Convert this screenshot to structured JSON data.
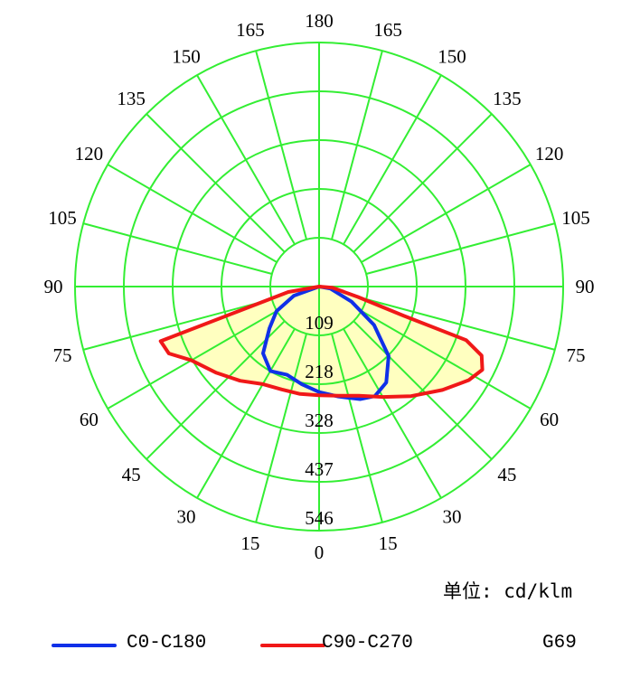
{
  "chart_data": {
    "type": "polar",
    "title": "",
    "unit_label": "单位: cd/klm",
    "lamp_code": "G69",
    "radial_ticks": [
      109,
      218,
      328,
      437,
      546
    ],
    "radial_max": 546,
    "angle_labels": {
      "right": [
        "0",
        "15",
        "30",
        "45",
        "60",
        "75",
        "90",
        "105",
        "120",
        "135",
        "150",
        "165",
        "180"
      ],
      "left": [
        "15",
        "30",
        "45",
        "60",
        "75",
        "90",
        "105",
        "120",
        "135",
        "150",
        "165"
      ]
    },
    "series": [
      {
        "name": "C0-C180",
        "color": "#1030e8",
        "points": [
          [
            -90,
            0
          ],
          [
            -70,
            60
          ],
          [
            -60,
            110
          ],
          [
            -50,
            145
          ],
          [
            -40,
            195
          ],
          [
            -30,
            218
          ],
          [
            -20,
            210
          ],
          [
            -10,
            222
          ],
          [
            0,
            236
          ],
          [
            10,
            250
          ],
          [
            20,
            268
          ],
          [
            27,
            275
          ],
          [
            35,
            262
          ],
          [
            45,
            220
          ],
          [
            55,
            150
          ],
          [
            65,
            80
          ],
          [
            80,
            25
          ],
          [
            90,
            0
          ]
        ]
      },
      {
        "name": "C90-C270",
        "color": "#f01818",
        "points": [
          [
            -90,
            0
          ],
          [
            -80,
            70
          ],
          [
            -73,
            190
          ],
          [
            -71,
            375
          ],
          [
            -66,
            368
          ],
          [
            -60,
            330
          ],
          [
            -50,
            300
          ],
          [
            -40,
            275
          ],
          [
            -30,
            252
          ],
          [
            -20,
            245
          ],
          [
            -10,
            244
          ],
          [
            0,
            243
          ],
          [
            10,
            248
          ],
          [
            20,
            260
          ],
          [
            30,
            285
          ],
          [
            40,
            320
          ],
          [
            50,
            360
          ],
          [
            58,
            395
          ],
          [
            63,
            410
          ],
          [
            67,
            395
          ],
          [
            70,
            350
          ],
          [
            71,
            200
          ],
          [
            75,
            90
          ],
          [
            85,
            30
          ],
          [
            90,
            0
          ]
        ]
      }
    ],
    "colors": {
      "grid": "#33ee33",
      "fill": "#ffffc0"
    }
  }
}
